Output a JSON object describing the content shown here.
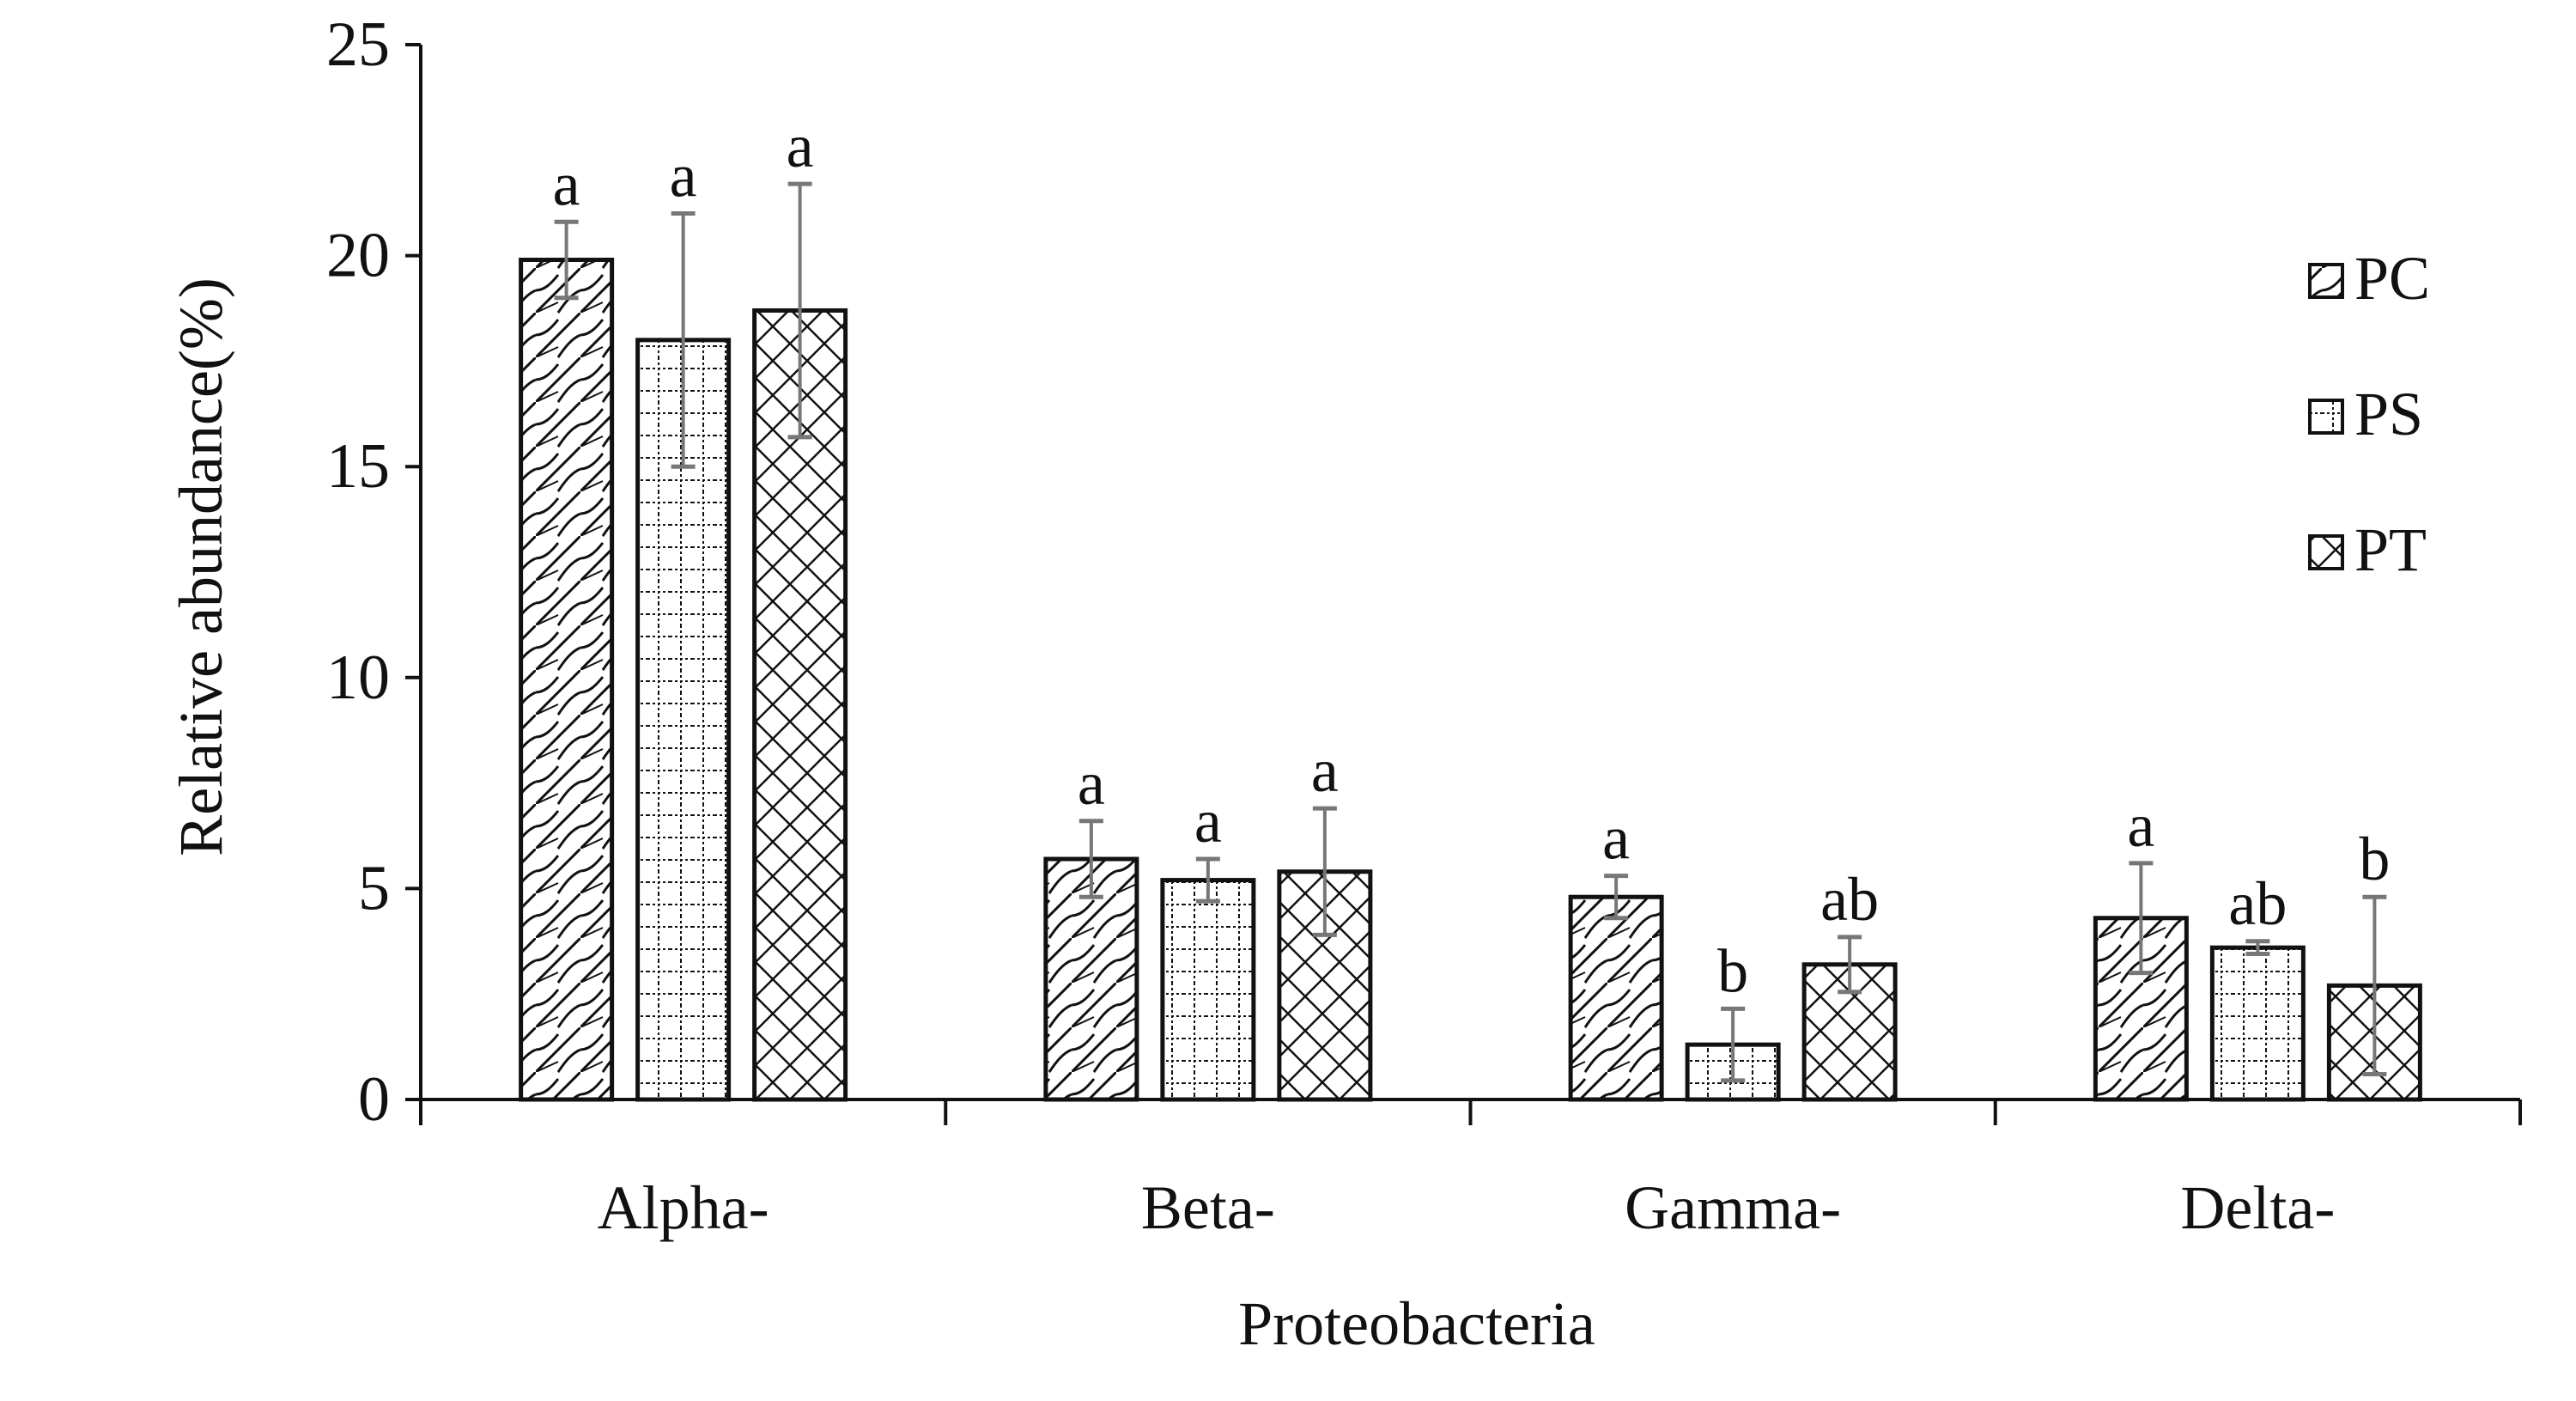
{
  "chart_data": {
    "type": "bar",
    "title": "",
    "xlabel": "Proteobacteria",
    "ylabel": "Relative abundance(%)",
    "ylim": [
      0,
      25
    ],
    "yticks": [
      0,
      5,
      10,
      15,
      20,
      25
    ],
    "grid": false,
    "legend_position": "right",
    "categories": [
      "Alpha-",
      "Beta-",
      "Gamma-",
      "Delta-"
    ],
    "series": [
      {
        "name": "PC",
        "pattern": "diagonal",
        "values": [
          19.9,
          5.7,
          4.8,
          4.3
        ],
        "error": [
          0.9,
          0.9,
          0.5,
          1.3
        ],
        "labels": [
          "a",
          "a",
          "a",
          "a"
        ]
      },
      {
        "name": "PS",
        "pattern": "dotted-grid",
        "values": [
          18.0,
          5.2,
          1.3,
          3.6
        ],
        "error": [
          3.0,
          0.5,
          0.85,
          0.15
        ],
        "labels": [
          "a",
          "a",
          "b",
          "ab"
        ]
      },
      {
        "name": "PT",
        "pattern": "crosshatch",
        "values": [
          18.7,
          5.4,
          3.2,
          2.7
        ],
        "error": [
          3.0,
          1.5,
          0.65,
          2.1
        ],
        "labels": [
          "a",
          "a",
          "ab",
          "b"
        ]
      }
    ]
  }
}
